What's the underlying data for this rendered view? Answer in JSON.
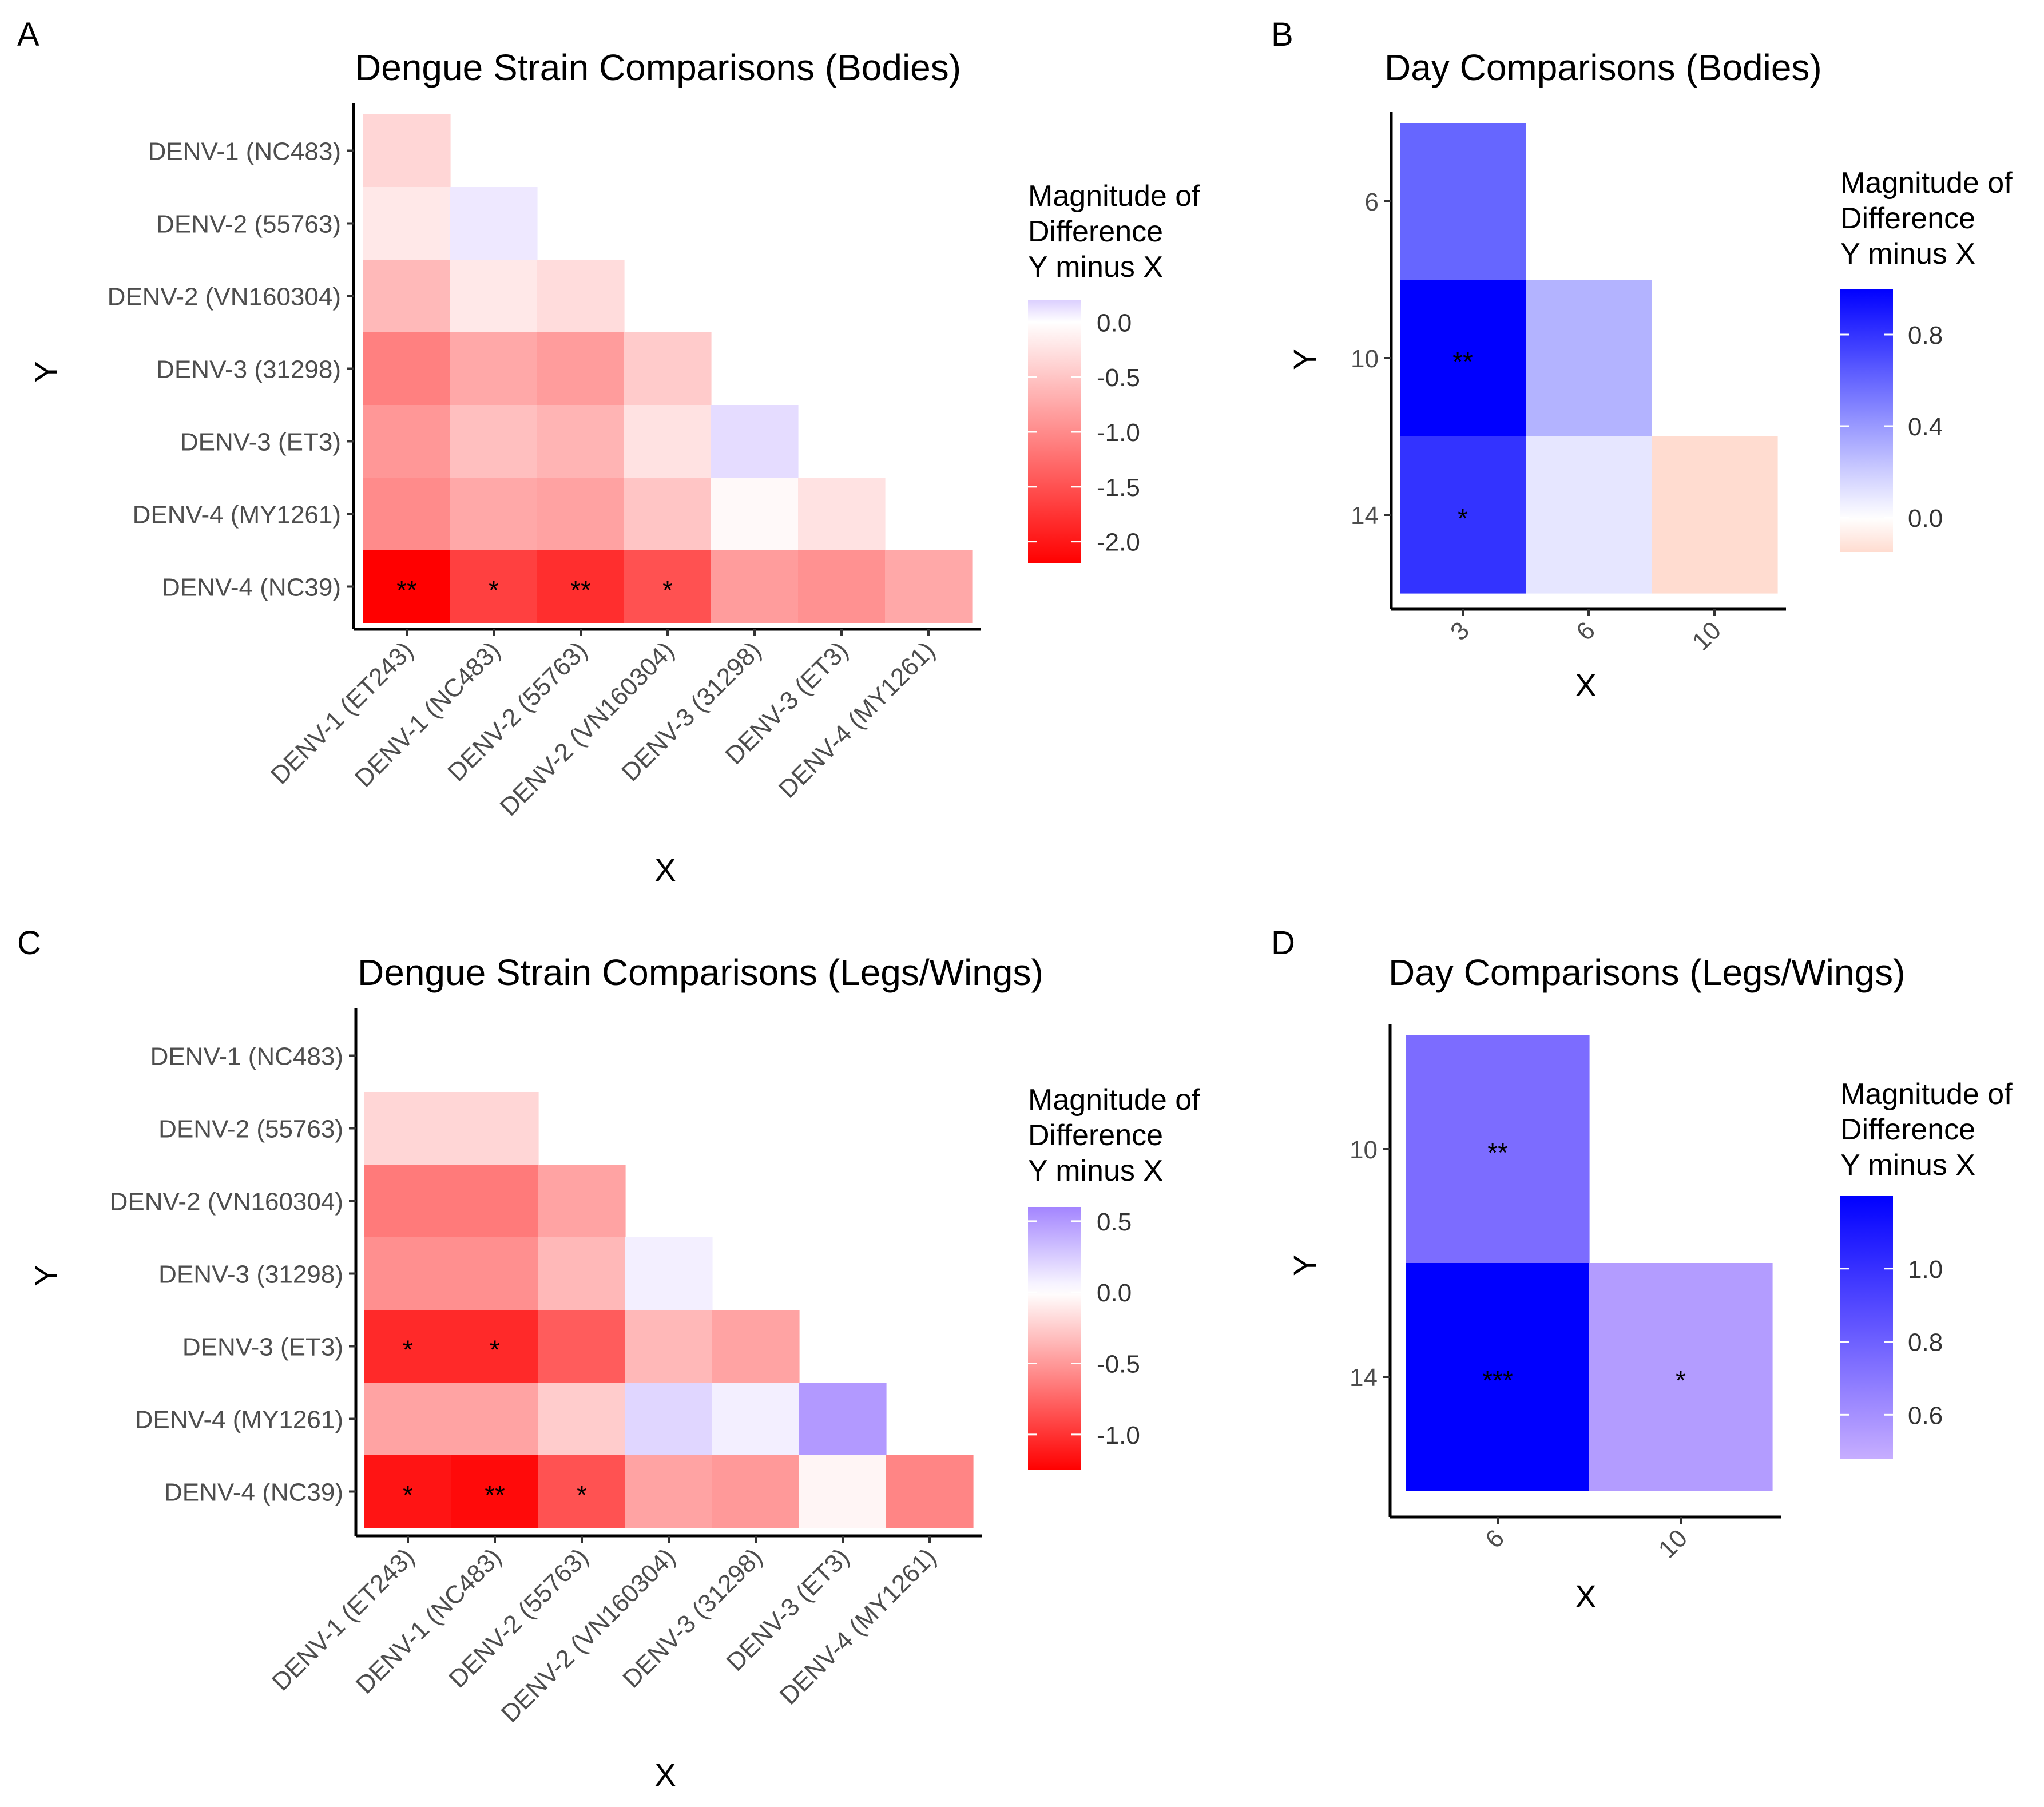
{
  "chart_data": [
    {
      "id": "A",
      "panel_label": "A",
      "type": "heatmap",
      "title": "Dengue Strain Comparisons (Bodies)",
      "xlabel": "X",
      "ylabel": "Y",
      "x_categories": [
        "DENV-1 (ET243)",
        "DENV-1 (NC483)",
        "DENV-2 (55763)",
        "DENV-2 (VN160304)",
        "DENV-3 (31298)",
        "DENV-3 (ET3)",
        "DENV-4 (MY1261)"
      ],
      "y_categories": [
        "DENV-1 (NC483)",
        "DENV-2 (55763)",
        "DENV-2 (VN160304)",
        "DENV-3 (31298)",
        "DENV-3 (ET3)",
        "DENV-4 (MY1261)",
        "DENV-4 (NC39)"
      ],
      "values": [
        [
          -0.35,
          null,
          null,
          null,
          null,
          null,
          null
        ],
        [
          -0.2,
          0.1,
          null,
          null,
          null,
          null,
          null
        ],
        [
          -0.6,
          -0.2,
          -0.3,
          null,
          null,
          null,
          null
        ],
        [
          -1.1,
          -0.75,
          -0.85,
          -0.45,
          null,
          null,
          null
        ],
        [
          -0.9,
          -0.55,
          -0.65,
          -0.25,
          0.15,
          null,
          null
        ],
        [
          -1.0,
          -0.75,
          -0.8,
          -0.5,
          -0.05,
          -0.25,
          null
        ],
        [
          -2.2,
          -1.65,
          -1.8,
          -1.5,
          -0.85,
          -0.95,
          -0.75
        ]
      ],
      "significance": [
        [
          "",
          "",
          "",
          "",
          "",
          "",
          ""
        ],
        [
          "",
          "",
          "",
          "",
          "",
          "",
          ""
        ],
        [
          "",
          "",
          "",
          "",
          "",
          "",
          ""
        ],
        [
          "",
          "",
          "",
          "",
          "",
          "",
          ""
        ],
        [
          "",
          "",
          "",
          "",
          "",
          "",
          ""
        ],
        [
          "",
          "",
          "",
          "",
          "",
          "",
          ""
        ],
        [
          "**",
          "*",
          "**",
          "*",
          "",
          "",
          ""
        ]
      ],
      "legend": {
        "title": [
          "Magnitude of",
          "Difference",
          "Y minus X"
        ],
        "range": [
          -2.2,
          0.2
        ],
        "ticks": [
          0.0,
          -0.5,
          -1.0,
          -1.5,
          -2.0
        ],
        "tick_labels": [
          "0.0",
          "-0.5",
          "-1.0",
          "-1.5",
          "-2.0"
        ],
        "colors": {
          "low": "#ff0000",
          "mid": "#ffffff",
          "high": "#dcd0ff"
        }
      }
    },
    {
      "id": "B",
      "panel_label": "B",
      "type": "heatmap",
      "title": "Day Comparisons (Bodies)",
      "xlabel": "X",
      "ylabel": "Y",
      "x_categories": [
        "3",
        "6",
        "10"
      ],
      "y_categories": [
        "6",
        "10",
        "14"
      ],
      "values": [
        [
          0.6,
          null,
          null
        ],
        [
          1.05,
          0.3,
          null
        ],
        [
          0.8,
          0.1,
          -0.15
        ]
      ],
      "significance": [
        [
          "",
          "",
          ""
        ],
        [
          "**",
          "",
          ""
        ],
        [
          "*",
          "",
          ""
        ]
      ],
      "legend": {
        "title": [
          "Magnitude of",
          "Difference",
          "Y minus X"
        ],
        "range": [
          -0.15,
          1.0
        ],
        "ticks": [
          0.8,
          0.4,
          0.0
        ],
        "tick_labels": [
          "0.8",
          "0.4",
          "0.0"
        ],
        "colors": {
          "low": "#ffdcd0",
          "mid": "#ffffff",
          "high": "#0000ff"
        }
      }
    },
    {
      "id": "C",
      "panel_label": "C",
      "type": "heatmap",
      "title": "Dengue Strain Comparisons (Legs/Wings)",
      "xlabel": "X",
      "ylabel": "Y",
      "x_categories": [
        "DENV-1 (ET243)",
        "DENV-1 (NC483)",
        "DENV-2 (55763)",
        "DENV-2 (VN160304)",
        "DENV-3 (31298)",
        "DENV-3 (ET3)",
        "DENV-4 (MY1261)"
      ],
      "y_categories": [
        "DENV-1 (NC483)",
        "DENV-2 (55763)",
        "DENV-2 (VN160304)",
        "DENV-3 (31298)",
        "DENV-3 (ET3)",
        "DENV-4 (MY1261)",
        "DENV-4 (NC39)"
      ],
      "values": [
        [
          0.0,
          null,
          null,
          null,
          null,
          null,
          null
        ],
        [
          -0.2,
          -0.2,
          null,
          null,
          null,
          null,
          null
        ],
        [
          -0.65,
          -0.65,
          -0.45,
          null,
          null,
          null,
          null
        ],
        [
          -0.55,
          -0.55,
          -0.35,
          0.08,
          null,
          null,
          null
        ],
        [
          -1.05,
          -1.05,
          -0.8,
          -0.35,
          -0.45,
          null,
          null
        ],
        [
          -0.45,
          -0.45,
          -0.25,
          0.2,
          0.08,
          0.5,
          null
        ],
        [
          -1.15,
          -1.2,
          -0.85,
          -0.45,
          -0.5,
          -0.05,
          -0.6
        ]
      ],
      "significance": [
        [
          "",
          "",
          "",
          "",
          "",
          "",
          ""
        ],
        [
          "",
          "",
          "",
          "",
          "",
          "",
          ""
        ],
        [
          "",
          "",
          "",
          "",
          "",
          "",
          ""
        ],
        [
          "",
          "",
          "",
          "",
          "",
          "",
          ""
        ],
        [
          "*",
          "*",
          "",
          "",
          "",
          "",
          ""
        ],
        [
          "",
          "",
          "",
          "",
          "",
          "",
          ""
        ],
        [
          "*",
          "**",
          "*",
          "",
          "",
          "",
          ""
        ]
      ],
      "legend": {
        "title": [
          "Magnitude of",
          "Difference",
          "Y minus X"
        ],
        "range": [
          -1.25,
          0.6
        ],
        "ticks": [
          0.5,
          0.0,
          -0.5,
          -1.0
        ],
        "tick_labels": [
          "0.5",
          "0.0",
          "-0.5",
          "-1.0"
        ],
        "colors": {
          "low": "#ff0000",
          "mid": "#ffffff",
          "high": "#a385ff"
        }
      }
    },
    {
      "id": "D",
      "panel_label": "D",
      "type": "heatmap",
      "title": "Day Comparisons (Legs/Wings)",
      "xlabel": "X",
      "ylabel": "Y",
      "x_categories": [
        "6",
        "10"
      ],
      "y_categories": [
        "10",
        "14"
      ],
      "values": [
        [
          0.75,
          null
        ],
        [
          1.2,
          0.55
        ]
      ],
      "significance": [
        [
          "**",
          ""
        ],
        [
          "***",
          "*"
        ]
      ],
      "legend": {
        "title": [
          "Magnitude of",
          "Difference",
          "Y minus X"
        ],
        "range": [
          0.48,
          1.2
        ],
        "ticks": [
          1.0,
          0.8,
          0.6
        ],
        "tick_labels": [
          "1.0",
          "0.8",
          "0.6"
        ],
        "colors": {
          "low": "#c6adff",
          "high": "#0000ff"
        }
      }
    }
  ]
}
